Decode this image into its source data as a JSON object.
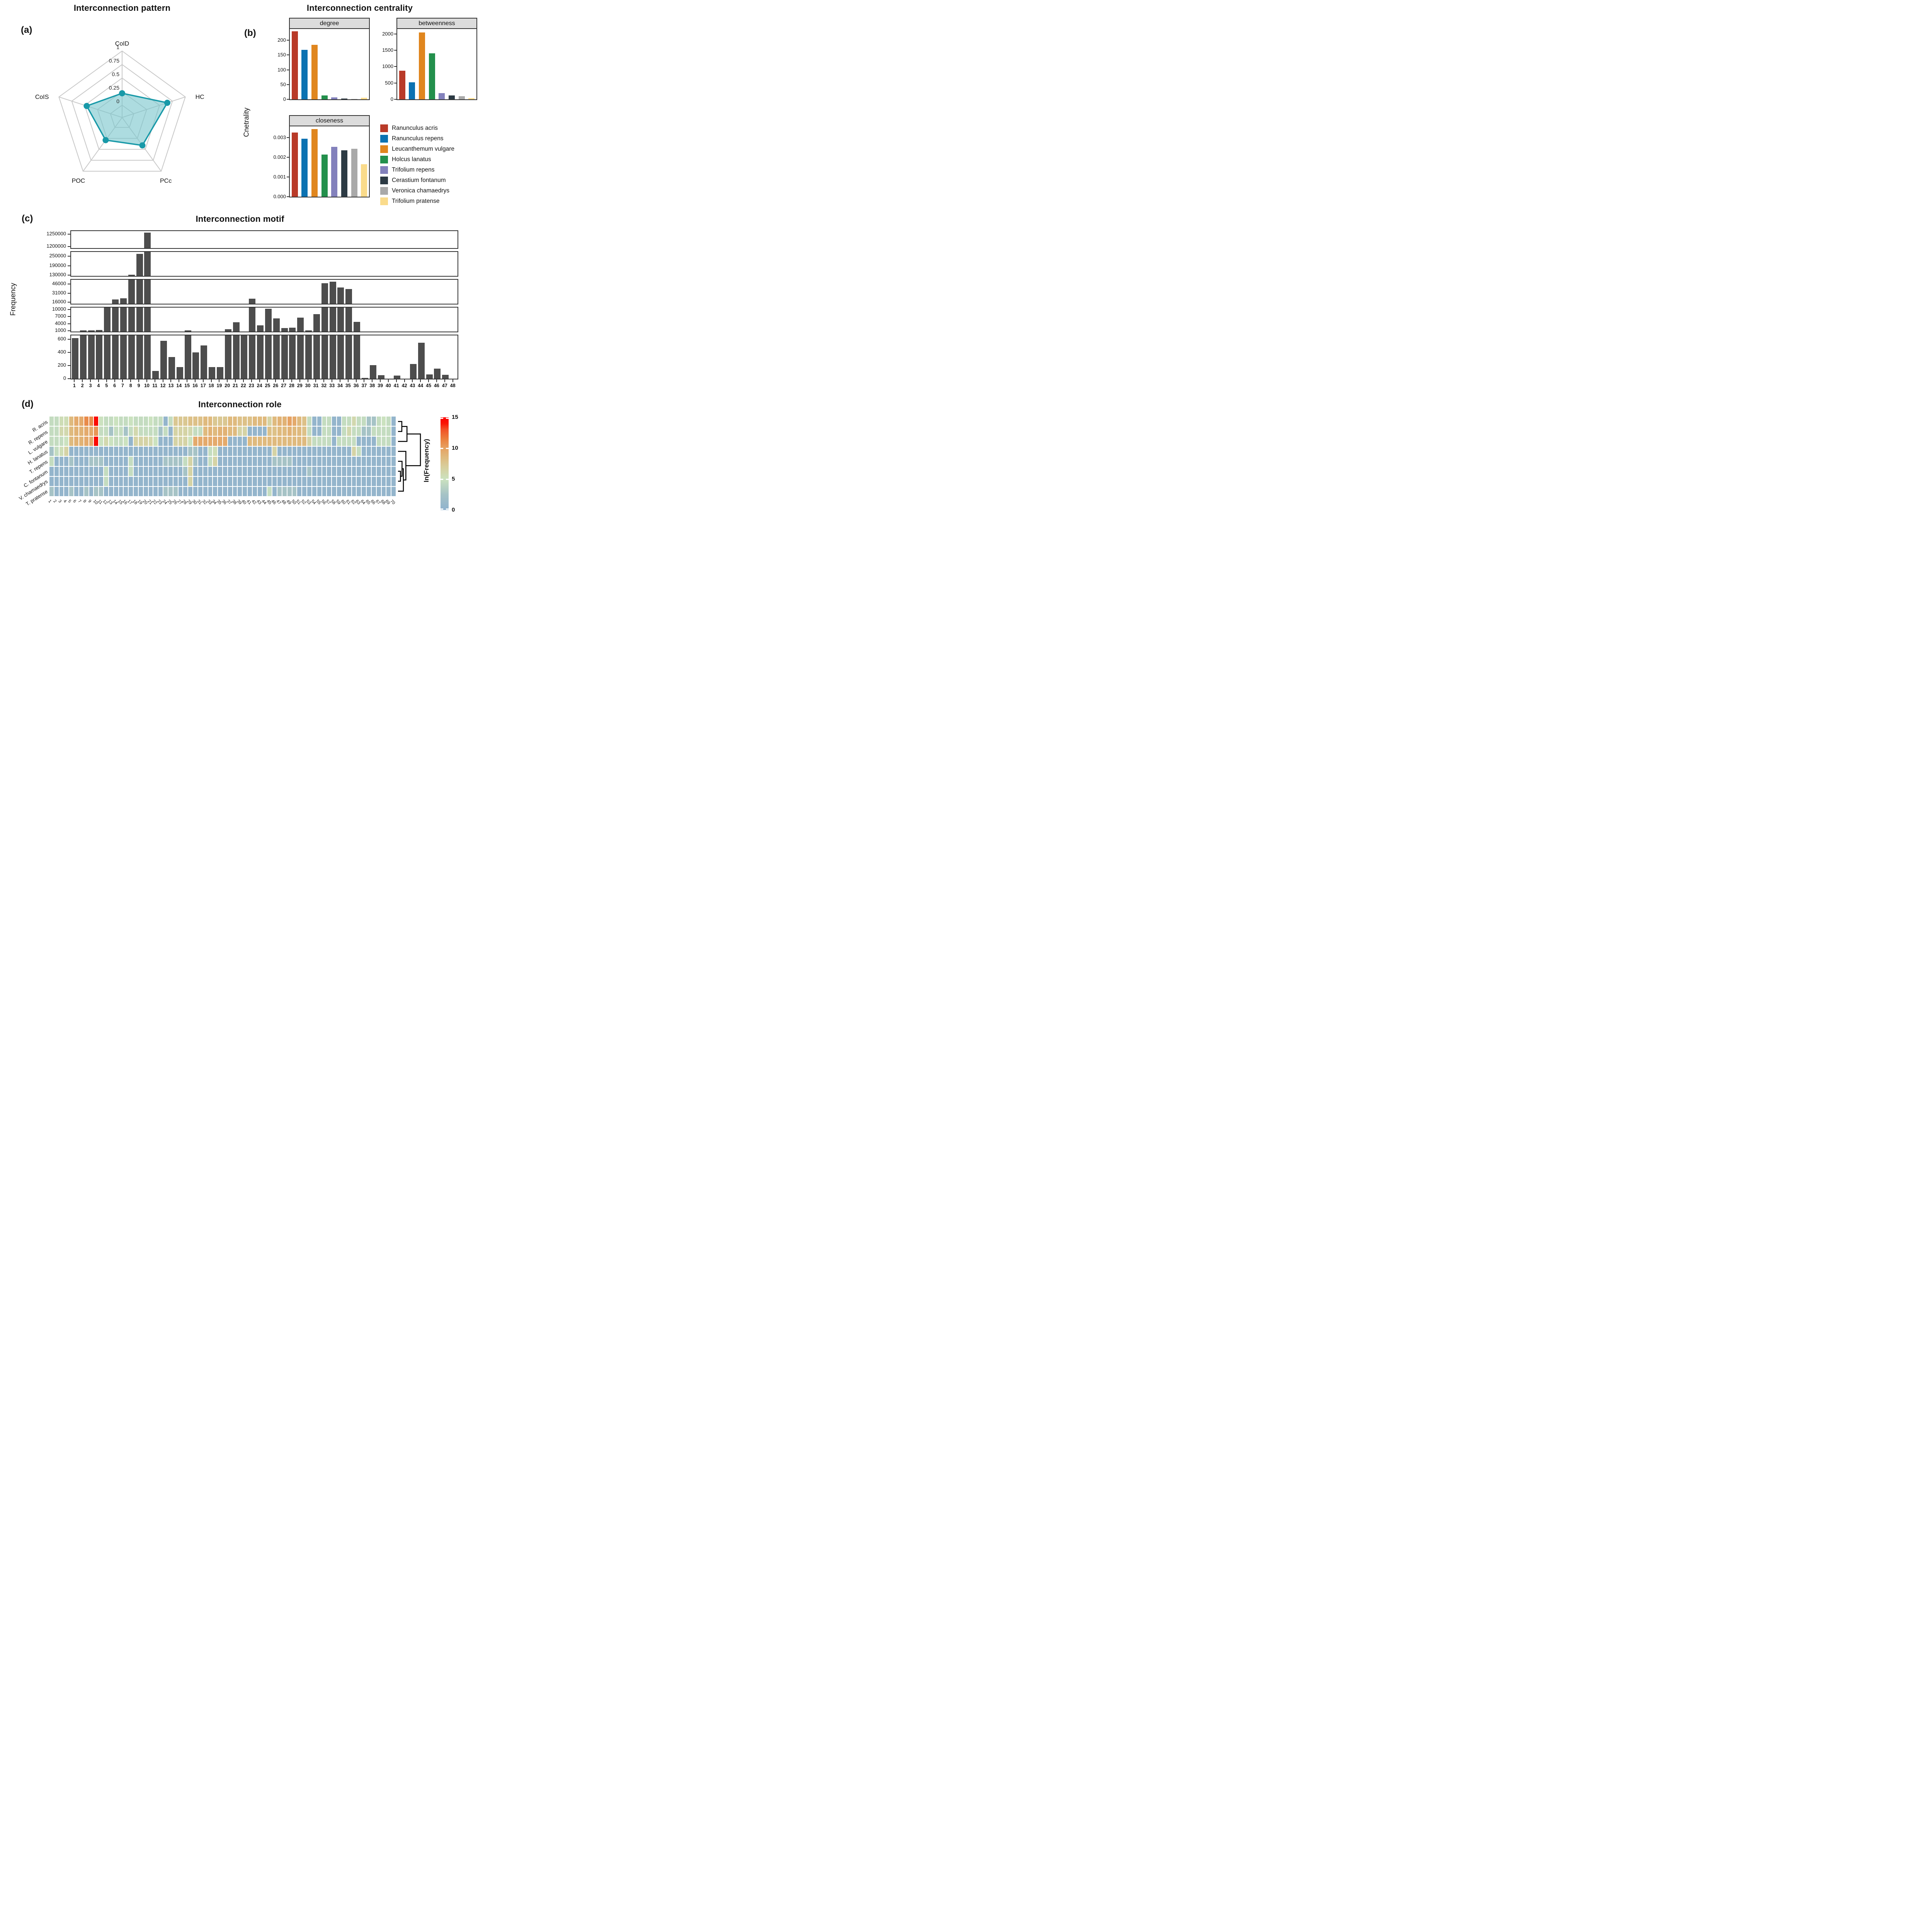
{
  "figure": {
    "panel_a_label": "(a)",
    "panel_b_label": "(b)",
    "panel_c_label": "(c)",
    "panel_d_label": "(d)"
  },
  "chart_data": [
    {
      "id": "interconnection-pattern",
      "type": "radar",
      "title": "Interconnection pattern",
      "axes": [
        "CoID",
        "HC",
        "PCc",
        "POC",
        "CoIS"
      ],
      "values": [
        0.22,
        0.65,
        0.41,
        0.29,
        0.46
      ],
      "ring_ticks": [
        0,
        0.25,
        0.5,
        0.75,
        1
      ],
      "ring_tick_labels": [
        "0",
        "0.25",
        "0.5",
        "0.75",
        "1"
      ],
      "fill_color": "#7AC6CD",
      "stroke_color": "#1899A8",
      "grid_color": "#C8C8C8"
    },
    {
      "id": "interconnection-centrality",
      "type": "bar",
      "title": "Interconnection centrality",
      "ylabel": "Cnetrality",
      "legend_position": "bottom-right",
      "species": [
        "Ranunculus acris",
        "Ranunculus repens",
        "Leucanthemum vulgare",
        "Holcus lanatus",
        "Trifolium repens",
        "Cerastium fontanum",
        "Veronica chamaedrys",
        "Trifolium pratense"
      ],
      "colors": [
        "#B93A28",
        "#0B72B2",
        "#E0861E",
        "#23904C",
        "#8381BC",
        "#2C3A44",
        "#A9A9A9",
        "#FADB8B"
      ],
      "facets": [
        {
          "name": "degree",
          "ylim": [
            0,
            238
          ],
          "ticks": [
            0,
            50,
            100,
            150,
            200
          ],
          "tick_labels": [
            "0",
            "50",
            "100",
            "150",
            "200"
          ],
          "values": [
            230,
            168,
            185,
            13,
            6,
            3,
            1.5,
            5
          ]
        },
        {
          "name": "betweenness",
          "ylim": [
            0,
            2150
          ],
          "ticks": [
            0,
            500,
            1000,
            1500,
            2000
          ],
          "tick_labels": [
            "0",
            "500",
            "1000",
            "1500",
            "2000"
          ],
          "values": [
            880,
            520,
            2050,
            1410,
            195,
            115,
            90,
            35
          ]
        },
        {
          "name": "closeness",
          "ylim": [
            0,
            0.00357
          ],
          "ticks": [
            0,
            0.001,
            0.002,
            0.003
          ],
          "tick_labels": [
            "0.000",
            "0.001",
            "0.002",
            "0.003"
          ],
          "values": [
            0.00325,
            0.00295,
            0.00343,
            0.00214,
            0.00253,
            0.00235,
            0.00243,
            0.00165
          ]
        }
      ]
    },
    {
      "id": "interconnection-motif",
      "type": "bar",
      "title": "Interconnection motif",
      "ylabel": "Frequency",
      "bar_color": "#4D4D4D",
      "categories": [
        "1",
        "2",
        "3",
        "4",
        "5",
        "6",
        "7",
        "8",
        "9",
        "10",
        "11",
        "12",
        "13",
        "14",
        "15",
        "16",
        "17",
        "18",
        "19",
        "20",
        "21",
        "22",
        "23",
        "24",
        "25",
        "26",
        "27",
        "28",
        "29",
        "30",
        "31",
        "32",
        "33",
        "34",
        "35",
        "36",
        "37",
        "38",
        "39",
        "40",
        "41",
        "42",
        "43",
        "44",
        "45",
        "46",
        "47",
        "48"
      ],
      "values": [
        620,
        1150,
        1250,
        1300,
        11000,
        20500,
        22500,
        133000,
        265000,
        1256000,
        120,
        580,
        330,
        180,
        1250,
        400,
        510,
        180,
        180,
        1700,
        4600,
        680,
        22000,
        3300,
        10300,
        6200,
        2100,
        2400,
        6600,
        1250,
        8000,
        47000,
        50000,
        40000,
        38000,
        4800,
        15,
        205,
        55,
        0,
        45,
        0,
        225,
        550,
        65,
        155,
        60,
        0
      ],
      "broken_y_segments": [
        {
          "lo": 1193000,
          "hi": 1262000,
          "ticks": [
            1200000,
            1250000
          ],
          "tick_labels": [
            "1200000",
            "1250000"
          ]
        },
        {
          "lo": 125000,
          "hi": 278000,
          "ticks": [
            130000,
            190000,
            250000
          ],
          "tick_labels": [
            "130000",
            "190000",
            "250000"
          ]
        },
        {
          "lo": 13500,
          "hi": 53000,
          "ticks": [
            16000,
            31000,
            46000
          ],
          "tick_labels": [
            "16000",
            "31000",
            "46000"
          ]
        },
        {
          "lo": 700,
          "hi": 10800,
          "ticks": [
            1000,
            4000,
            7000,
            10000
          ],
          "tick_labels": [
            "1000",
            "4000",
            "7000",
            "10000"
          ]
        },
        {
          "lo": 0,
          "hi": 660,
          "ticks": [
            0,
            200,
            400,
            600
          ],
          "tick_labels": [
            "0",
            "200",
            "400",
            "600"
          ]
        }
      ]
    },
    {
      "id": "interconnection-role",
      "type": "heatmap",
      "title": "Interconnection role",
      "rows": [
        "R. acris",
        "R. repens",
        "L. vulgare",
        "H. lanatus",
        "T. repens",
        "C. fontanum",
        "V. chamaedrys",
        "T. pratense"
      ],
      "cols": [
        "1",
        "2",
        "3",
        "4",
        "5",
        "6",
        "7",
        "8",
        "9",
        "10",
        "11",
        "12",
        "13",
        "14",
        "15",
        "16",
        "17",
        "18",
        "19",
        "20",
        "21",
        "22",
        "23",
        "24",
        "25",
        "26",
        "27",
        "28",
        "29",
        "30",
        "31",
        "32",
        "33",
        "34",
        "35",
        "36",
        "37",
        "38",
        "39",
        "40",
        "41",
        "42",
        "43",
        "44",
        "45",
        "46",
        "47",
        "48",
        "49",
        "50",
        "51",
        "52",
        "53",
        "54",
        "55",
        "56",
        "57",
        "58",
        "59",
        "60",
        "61",
        "62",
        "63",
        "64",
        "65",
        "66",
        "67",
        "68",
        "69",
        "70"
      ],
      "matrix": [
        [
          4.5,
          4.5,
          5.5,
          5.5,
          8.5,
          9.5,
          9.5,
          11,
          11,
          14.5,
          5,
          4.5,
          4.5,
          5,
          4.5,
          4.5,
          5,
          4.5,
          4.5,
          4.5,
          5,
          4.5,
          4.5,
          0.5,
          4.5,
          7.5,
          7.5,
          7.5,
          8,
          8,
          8,
          8.5,
          8.5,
          7.5,
          7.5,
          7.5,
          8.5,
          8.5,
          8,
          8,
          8,
          8.5,
          8.5,
          8.5,
          6.5,
          8.5,
          9,
          9,
          10,
          9.5,
          8.5,
          8,
          4.5,
          0.5,
          0.5,
          4.5,
          4.5,
          0.5,
          0.5,
          4.5,
          4.5,
          6,
          4.5,
          4.5,
          2.5,
          2.5,
          4.5,
          5,
          4.5,
          0.5
        ],
        [
          4.5,
          4.5,
          6,
          6,
          8.5,
          9,
          9,
          9.5,
          9.5,
          10.5,
          4.5,
          4.5,
          2.5,
          4.5,
          4.5,
          2.5,
          4.5,
          6,
          4.5,
          4.5,
          4.5,
          4.5,
          2.5,
          4.5,
          0.5,
          6.5,
          6.5,
          6.5,
          6,
          4.5,
          4.5,
          8.5,
          9,
          8.5,
          9,
          9,
          8.5,
          8.5,
          6.5,
          6.5,
          0.5,
          0.5,
          0.5,
          0.5,
          8,
          8,
          8.5,
          8.5,
          9,
          8.5,
          8.5,
          8,
          4.5,
          0.5,
          0.5,
          4.5,
          4.5,
          0.5,
          0.5,
          4.5,
          6,
          4.5,
          4.5,
          2.5,
          2.5,
          4.5,
          4.5,
          4.5,
          4.5,
          0.5
        ],
        [
          4.5,
          4.5,
          4.5,
          5,
          8.5,
          9,
          9,
          9.5,
          9.5,
          14.5,
          5,
          6,
          5,
          4.5,
          4.5,
          5,
          0.5,
          6.5,
          6.5,
          6.5,
          6,
          5,
          0.5,
          0.5,
          0.5,
          6.5,
          6.5,
          6.5,
          5,
          9.5,
          9.5,
          9.5,
          9.5,
          9.5,
          9.5,
          9.5,
          0.5,
          0.5,
          0.5,
          0.5,
          8.5,
          8.5,
          8.5,
          8.5,
          8.5,
          8.5,
          8.5,
          8.5,
          8.5,
          8.5,
          8.5,
          8.5,
          6.5,
          4.5,
          4.5,
          4.5,
          4.5,
          0.5,
          4.5,
          4.5,
          4.5,
          4.5,
          0.5,
          0.5,
          0.5,
          0.5,
          4.5,
          4.5,
          4.5,
          0.5
        ],
        [
          2.5,
          4.5,
          5.5,
          6.5,
          0.5,
          0.5,
          0.5,
          0.5,
          0.5,
          0.5,
          0.5,
          0.5,
          0.5,
          0.5,
          0.5,
          0.5,
          0.5,
          0.5,
          0.5,
          0.5,
          0.5,
          0.5,
          0.5,
          0.5,
          0.5,
          0.5,
          0.5,
          0.5,
          2.5,
          2.5,
          0.5,
          0.5,
          4.5,
          5.5,
          0.5,
          0.5,
          0.5,
          0.5,
          0.5,
          0.5,
          0.5,
          0.5,
          0.5,
          0.5,
          0.5,
          6.5,
          0.5,
          0.5,
          0.5,
          0.5,
          0.5,
          0.5,
          0.5,
          0.5,
          0.5,
          0.5,
          0.5,
          0.5,
          0.5,
          0.5,
          0.5,
          6.5,
          4.5,
          0.5,
          0.5,
          0.5,
          0.5,
          0.5,
          0.5,
          0.5
        ],
        [
          4.5,
          0.5,
          0.5,
          0.5,
          2.5,
          0.5,
          0.5,
          0.5,
          2.5,
          2.5,
          2.5,
          0.5,
          0.5,
          0.5,
          0.5,
          0.5,
          4.5,
          0.5,
          0.5,
          0.5,
          0.5,
          0.5,
          0.5,
          2.5,
          2.5,
          2.5,
          2.5,
          4.5,
          6.5,
          2.5,
          0.5,
          0.5,
          4.5,
          6.5,
          0.5,
          0.5,
          0.5,
          0.5,
          0.5,
          0.5,
          0.5,
          0.5,
          0.5,
          0.5,
          0.5,
          2.5,
          2.5,
          2.5,
          2.5,
          0.5,
          0.5,
          0.5,
          0.5,
          0.5,
          0.5,
          0.5,
          0.5,
          0.5,
          0.5,
          0.5,
          0.5,
          0.5,
          0.5,
          0.5,
          0.5,
          0.5,
          0.5,
          0.5,
          0.5,
          0.5
        ],
        [
          0.5,
          0.5,
          0.5,
          0.5,
          0.5,
          0.5,
          0.5,
          0.5,
          0.5,
          0.5,
          0.5,
          4.5,
          0.5,
          0.5,
          0.5,
          0.5,
          4.5,
          0.5,
          0.5,
          0.5,
          0.5,
          0.5,
          0.5,
          0.5,
          0.5,
          0.5,
          0.5,
          2.5,
          6.5,
          0.5,
          0.5,
          0.5,
          0.5,
          0.5,
          0.5,
          0.5,
          0.5,
          0.5,
          0.5,
          0.5,
          0.5,
          0.5,
          0.5,
          0.5,
          0.5,
          0.5,
          0.5,
          0.5,
          0.5,
          0.5,
          0.5,
          0.5,
          2.5,
          0.5,
          0.5,
          0.5,
          0.5,
          0.5,
          0.5,
          0.5,
          0.5,
          0.5,
          0.5,
          0.5,
          0.5,
          0.5,
          0.5,
          0.5,
          0.5,
          0.5
        ],
        [
          0.5,
          0.5,
          0.5,
          0.5,
          0.5,
          0.5,
          0.5,
          0.5,
          0.5,
          0.5,
          0.5,
          4.5,
          0.5,
          0.5,
          0.5,
          0.5,
          0.5,
          0.5,
          0.5,
          0.5,
          0.5,
          0.5,
          0.5,
          0.5,
          0.5,
          0.5,
          0.5,
          0.5,
          6.5,
          0.5,
          0.5,
          0.5,
          0.5,
          0.5,
          0.5,
          0.5,
          0.5,
          0.5,
          0.5,
          0.5,
          0.5,
          0.5,
          0.5,
          0.5,
          0.5,
          0.5,
          0.5,
          0.5,
          0.5,
          0.5,
          0.5,
          0.5,
          0.5,
          0.5,
          0.5,
          0.5,
          0.5,
          0.5,
          0.5,
          0.5,
          0.5,
          0.5,
          0.5,
          0.5,
          0.5,
          0.5,
          0.5,
          0.5,
          0.5,
          0.5
        ],
        [
          2.5,
          0.5,
          0.5,
          0.5,
          2.5,
          0.5,
          0.5,
          2.5,
          0.5,
          2.5,
          2.5,
          0.5,
          0.5,
          0.5,
          0.5,
          0.5,
          0.5,
          0.5,
          0.5,
          0.5,
          0.5,
          0.5,
          0.5,
          2.5,
          2.5,
          2.5,
          0.5,
          0.5,
          0.5,
          0.5,
          0.5,
          0.5,
          0.5,
          0.5,
          0.5,
          0.5,
          0.5,
          0.5,
          0.5,
          0.5,
          0.5,
          0.5,
          0.5,
          0.5,
          4.5,
          0.5,
          2.5,
          2.5,
          2.5,
          2.5,
          0.5,
          0.5,
          0.5,
          0.5,
          0.5,
          0.5,
          0.5,
          0.5,
          0.5,
          0.5,
          0.5,
          0.5,
          0.5,
          0.5,
          0.5,
          0.5,
          0.5,
          0.5,
          0.5,
          0.5
        ]
      ],
      "colorbar": {
        "label": "ln(Frequency)",
        "domain": [
          0,
          15
        ],
        "ticks": [
          0,
          5,
          10,
          15
        ],
        "tick_labels": [
          "0",
          "5",
          "10",
          "15"
        ],
        "stops": [
          [
            0,
            "#8FB2CE"
          ],
          [
            2.5,
            "#A6C3C6"
          ],
          [
            5,
            "#CBE2BF"
          ],
          [
            7,
            "#D8CE9C"
          ],
          [
            8.5,
            "#DFBA7E"
          ],
          [
            10,
            "#E6A263"
          ],
          [
            11.5,
            "#EB7F3D"
          ],
          [
            13,
            "#F25227"
          ],
          [
            14,
            "#FA1505"
          ],
          [
            15,
            "#FC0000"
          ]
        ]
      },
      "row_dendrogram_merges": [
        {
          "a": [
            "leaf",
            0
          ],
          "b": [
            "leaf",
            1
          ],
          "h": 0.17
        },
        {
          "a": [
            "merge",
            0
          ],
          "b": [
            "leaf",
            2
          ],
          "h": 0.4
        },
        {
          "a": [
            "leaf",
            5
          ],
          "b": [
            "leaf",
            6
          ],
          "h": 0.11
        },
        {
          "a": [
            "leaf",
            4
          ],
          "b": [
            "merge",
            2
          ],
          "h": 0.18
        },
        {
          "a": [
            "merge",
            3
          ],
          "b": [
            "leaf",
            7
          ],
          "h": 0.24
        },
        {
          "a": [
            "leaf",
            3
          ],
          "b": [
            "merge",
            4
          ],
          "h": 0.35
        },
        {
          "a": [
            "merge",
            1
          ],
          "b": [
            "merge",
            5
          ],
          "h": 1.0
        }
      ]
    }
  ]
}
